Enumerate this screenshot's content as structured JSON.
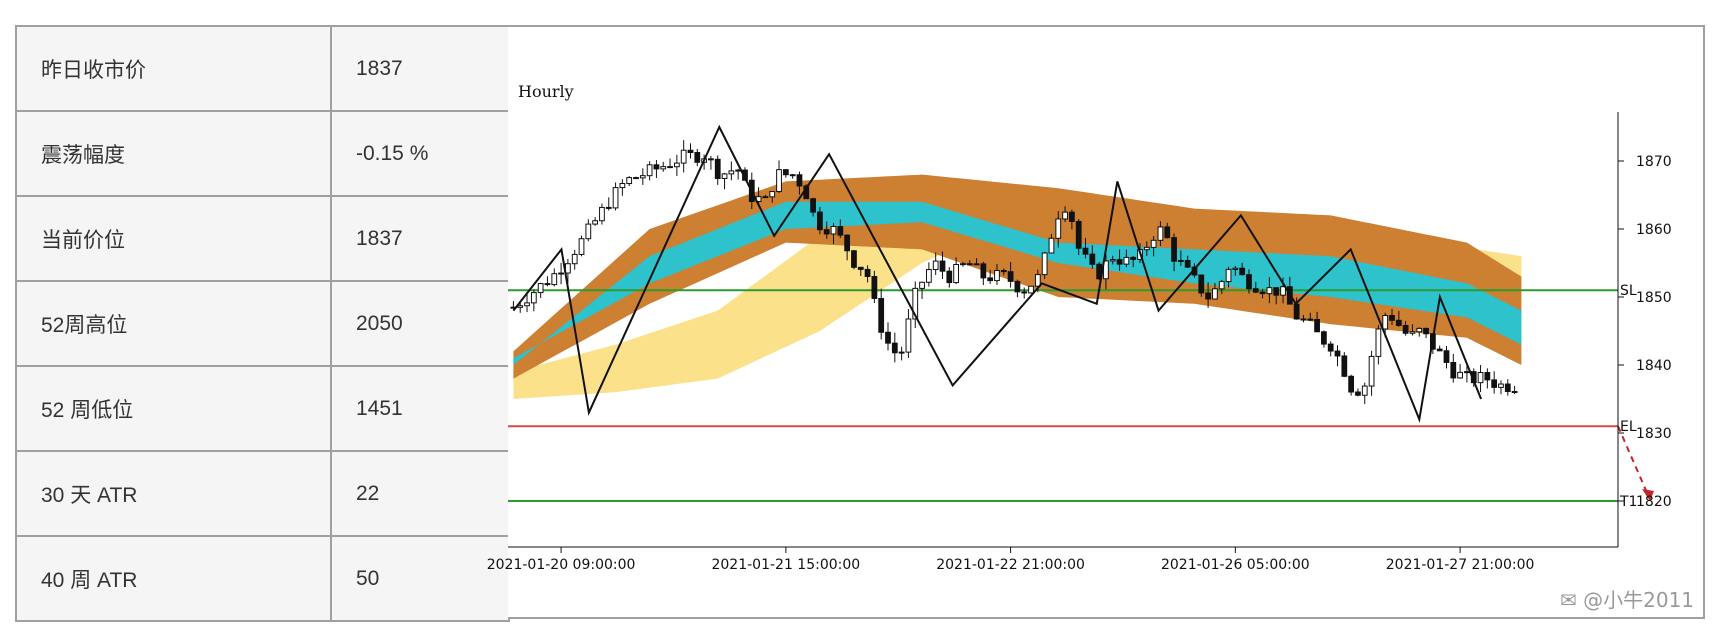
{
  "stats_table": {
    "rows": [
      {
        "label": "昨日收市价",
        "value": "1837"
      },
      {
        "label": "震荡幅度",
        "value": "-0.15 %"
      },
      {
        "label": "当前价位",
        "value": "1837"
      },
      {
        "label": "52周高位",
        "value": "2050"
      },
      {
        "label": "52 周低位",
        "value": "1451"
      },
      {
        "label": "30 天 ATR",
        "value": "22"
      },
      {
        "label": "40 周 ATR",
        "value": "50"
      }
    ]
  },
  "watermark": "✉ @小牛2011",
  "chart_data": {
    "type": "candlestick",
    "title": "Hourly",
    "ylim": [
      1815,
      1875
    ],
    "yticks": [
      1820,
      1830,
      1840,
      1850,
      1860,
      1870
    ],
    "xticks": [
      "2021-01-20 09:00:00",
      "2021-01-21 15:00:00",
      "2021-01-22 21:00:00",
      "2021-01-26 05:00:00",
      "2021-01-27 21:00:00"
    ],
    "xtick_index": [
      7,
      40,
      73,
      106,
      139
    ],
    "n_candles": 148,
    "anchors": [
      [
        0,
        1848.5
      ],
      [
        7,
        1853
      ],
      [
        12,
        1858
      ],
      [
        17,
        1864
      ],
      [
        20,
        1867
      ],
      [
        26,
        1869
      ],
      [
        30,
        1870.5
      ],
      [
        34,
        1871
      ],
      [
        37,
        1868
      ],
      [
        40,
        1869
      ],
      [
        42,
        1865
      ],
      [
        45,
        1864
      ],
      [
        47,
        1868
      ],
      [
        50,
        1868
      ],
      [
        52,
        1866
      ],
      [
        54,
        1861
      ],
      [
        57,
        1860
      ],
      [
        59,
        1858
      ],
      [
        61,
        1855
      ],
      [
        63,
        1854
      ],
      [
        65,
        1847
      ],
      [
        67,
        1843
      ],
      [
        69,
        1841
      ],
      [
        72,
        1851
      ],
      [
        75,
        1855
      ],
      [
        78,
        1853
      ],
      [
        81,
        1855
      ],
      [
        84,
        1853
      ],
      [
        88,
        1853
      ],
      [
        91,
        1851
      ],
      [
        94,
        1853
      ],
      [
        97,
        1862
      ],
      [
        99,
        1864
      ],
      [
        101,
        1857
      ],
      [
        104,
        1853
      ],
      [
        107,
        1856
      ],
      [
        110,
        1855
      ],
      [
        112,
        1856
      ],
      [
        114,
        1859
      ],
      [
        116,
        1860
      ],
      [
        118,
        1856
      ],
      [
        121,
        1853
      ],
      [
        124,
        1850
      ],
      [
        126,
        1851.5
      ],
      [
        128,
        1855
      ],
      [
        130,
        1853
      ],
      [
        132,
        1852
      ],
      [
        135,
        1851
      ],
      [
        137,
        1851
      ],
      [
        140,
        1847
      ],
      [
        142,
        1846
      ],
      [
        144,
        1844
      ],
      [
        146,
        1843
      ],
      [
        148,
        1840
      ],
      [
        150,
        1836
      ],
      [
        152,
        1837
      ],
      [
        154,
        1844
      ],
      [
        156,
        1848
      ],
      [
        158,
        1846
      ],
      [
        160,
        1844
      ],
      [
        162,
        1845
      ],
      [
        164,
        1843
      ],
      [
        166,
        1841
      ],
      [
        168,
        1839
      ],
      [
        170,
        1838
      ],
      [
        172,
        1838
      ],
      [
        174,
        1838
      ],
      [
        176,
        1837
      ],
      [
        178,
        1837
      ],
      [
        180,
        1837
      ]
    ],
    "zigzag": [
      [
        0,
        1848
      ],
      [
        7,
        1857
      ],
      [
        11,
        1833
      ],
      [
        30,
        1875
      ],
      [
        38,
        1859
      ],
      [
        46,
        1871
      ],
      [
        64,
        1837
      ],
      [
        77,
        1852
      ],
      [
        85,
        1849
      ],
      [
        88,
        1867
      ],
      [
        94,
        1848
      ],
      [
        106,
        1862
      ],
      [
        114,
        1849
      ],
      [
        122,
        1857
      ],
      [
        132,
        1832
      ],
      [
        135,
        1850
      ],
      [
        141,
        1835
      ]
    ],
    "bands": {
      "brown_outer": {
        "color": "#cd7f32",
        "upper": [
          [
            0,
            1842
          ],
          [
            20,
            1860
          ],
          [
            40,
            1867
          ],
          [
            60,
            1868
          ],
          [
            80,
            1866
          ],
          [
            100,
            1863
          ],
          [
            120,
            1862
          ],
          [
            140,
            1858
          ],
          [
            148,
            1853
          ]
        ],
        "lower": [
          [
            0,
            1838
          ],
          [
            20,
            1849
          ],
          [
            40,
            1858
          ],
          [
            60,
            1857
          ],
          [
            80,
            1850
          ],
          [
            100,
            1849
          ],
          [
            120,
            1846
          ],
          [
            140,
            1844
          ],
          [
            148,
            1840
          ]
        ]
      },
      "teal": {
        "color": "#2ec2cc",
        "upper": [
          [
            0,
            1840
          ],
          [
            20,
            1856
          ],
          [
            40,
            1864
          ],
          [
            60,
            1864
          ],
          [
            80,
            1858
          ],
          [
            100,
            1857
          ],
          [
            120,
            1856
          ],
          [
            140,
            1852
          ],
          [
            148,
            1848
          ]
        ],
        "lower": [
          [
            0,
            1841
          ],
          [
            20,
            1852
          ],
          [
            40,
            1860
          ],
          [
            60,
            1861
          ],
          [
            80,
            1855
          ],
          [
            100,
            1852
          ],
          [
            120,
            1850
          ],
          [
            140,
            1847
          ],
          [
            148,
            1843
          ]
        ]
      },
      "yellow": {
        "color": "#fbe28a",
        "upper": [
          [
            0,
            1839
          ],
          [
            15,
            1843
          ],
          [
            30,
            1848
          ],
          [
            45,
            1859
          ],
          [
            60,
            1864
          ],
          [
            75,
            1866
          ],
          [
            90,
            1862
          ],
          [
            105,
            1860
          ],
          [
            120,
            1859
          ],
          [
            135,
            1858
          ],
          [
            148,
            1856
          ]
        ],
        "lower": [
          [
            0,
            1835
          ],
          [
            15,
            1836
          ],
          [
            30,
            1838
          ],
          [
            45,
            1845
          ],
          [
            60,
            1855
          ],
          [
            75,
            1862
          ],
          [
            90,
            1858
          ],
          [
            105,
            1856
          ],
          [
            120,
            1854
          ],
          [
            135,
            1853
          ],
          [
            148,
            1851
          ]
        ]
      }
    },
    "levels": [
      {
        "label": "SL",
        "value": 1851,
        "color": "#2d9a2d"
      },
      {
        "label": "EL",
        "value": 1831,
        "color": "#d84a4a"
      },
      {
        "label": "T1",
        "value": 1820,
        "color": "#2d9a2d"
      }
    ]
  }
}
